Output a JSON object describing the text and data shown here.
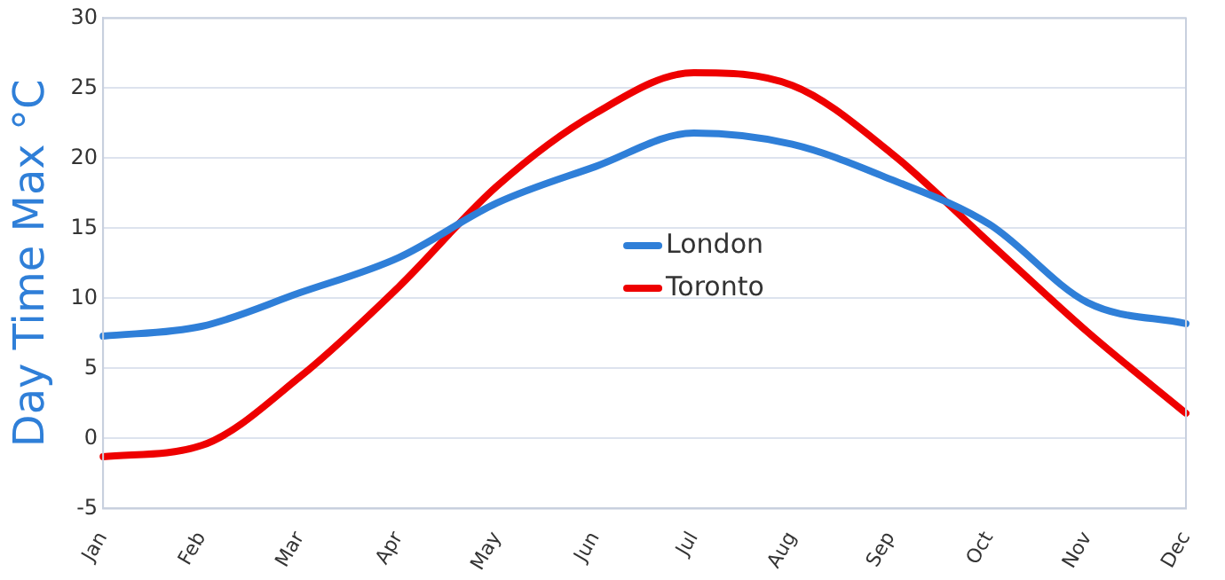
{
  "chart_data": {
    "type": "line",
    "ylabel": "Day Time Max °C",
    "categories": [
      "Jan",
      "Feb",
      "Mar",
      "Apr",
      "May",
      "Jun",
      "Jul",
      "Aug",
      "Sep",
      "Oct",
      "Nov",
      "Dec"
    ],
    "series": [
      {
        "name": "London",
        "color": "#2f7fd8",
        "values": [
          7.3,
          8,
          10.4,
          12.9,
          16.8,
          19.4,
          21.8,
          21,
          18.5,
          15.3,
          9.7,
          8.2
        ]
      },
      {
        "name": "Toronto",
        "color": "#ee0000",
        "values": [
          -1.3,
          -0.5,
          4.4,
          10.8,
          18,
          23.2,
          26.1,
          25.2,
          20.4,
          14,
          7.6,
          1.8
        ]
      }
    ],
    "ylim": [
      -5,
      30
    ],
    "yticks": [
      -5,
      0,
      5,
      10,
      15,
      20,
      25,
      30
    ],
    "grid": "y",
    "legend": "center",
    "marker": "none",
    "line_style": "solid"
  }
}
